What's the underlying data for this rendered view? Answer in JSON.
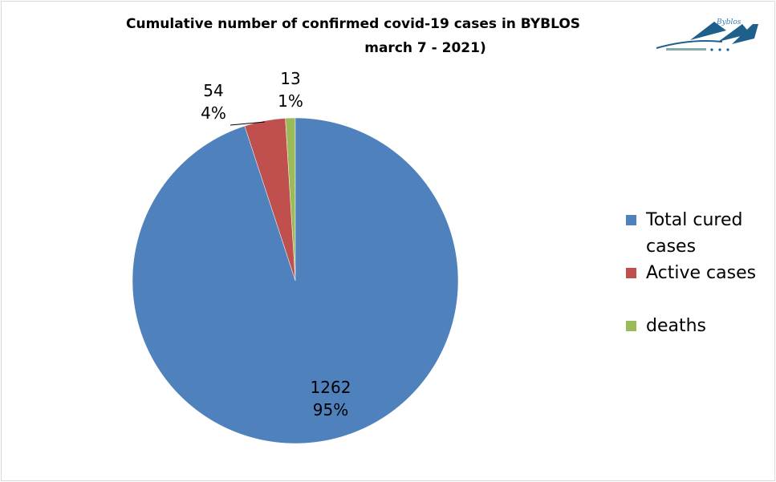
{
  "chart_data": {
    "type": "pie",
    "title": "Cumulative number of confirmed covid-19 cases in BYBLOS",
    "subtitle": "march 7 - 2021)",
    "legend_position": "right",
    "slices": [
      {
        "name": "Total cured cases",
        "value": 1262,
        "percent": "95%",
        "color": "#4f81bd"
      },
      {
        "name": "Active cases",
        "value": 54,
        "percent": "4%",
        "color": "#c0504d"
      },
      {
        "name": "deaths",
        "value": 13,
        "percent": "1%",
        "color": "#9bbb59"
      }
    ]
  },
  "logo": {
    "text": "Byblos"
  }
}
